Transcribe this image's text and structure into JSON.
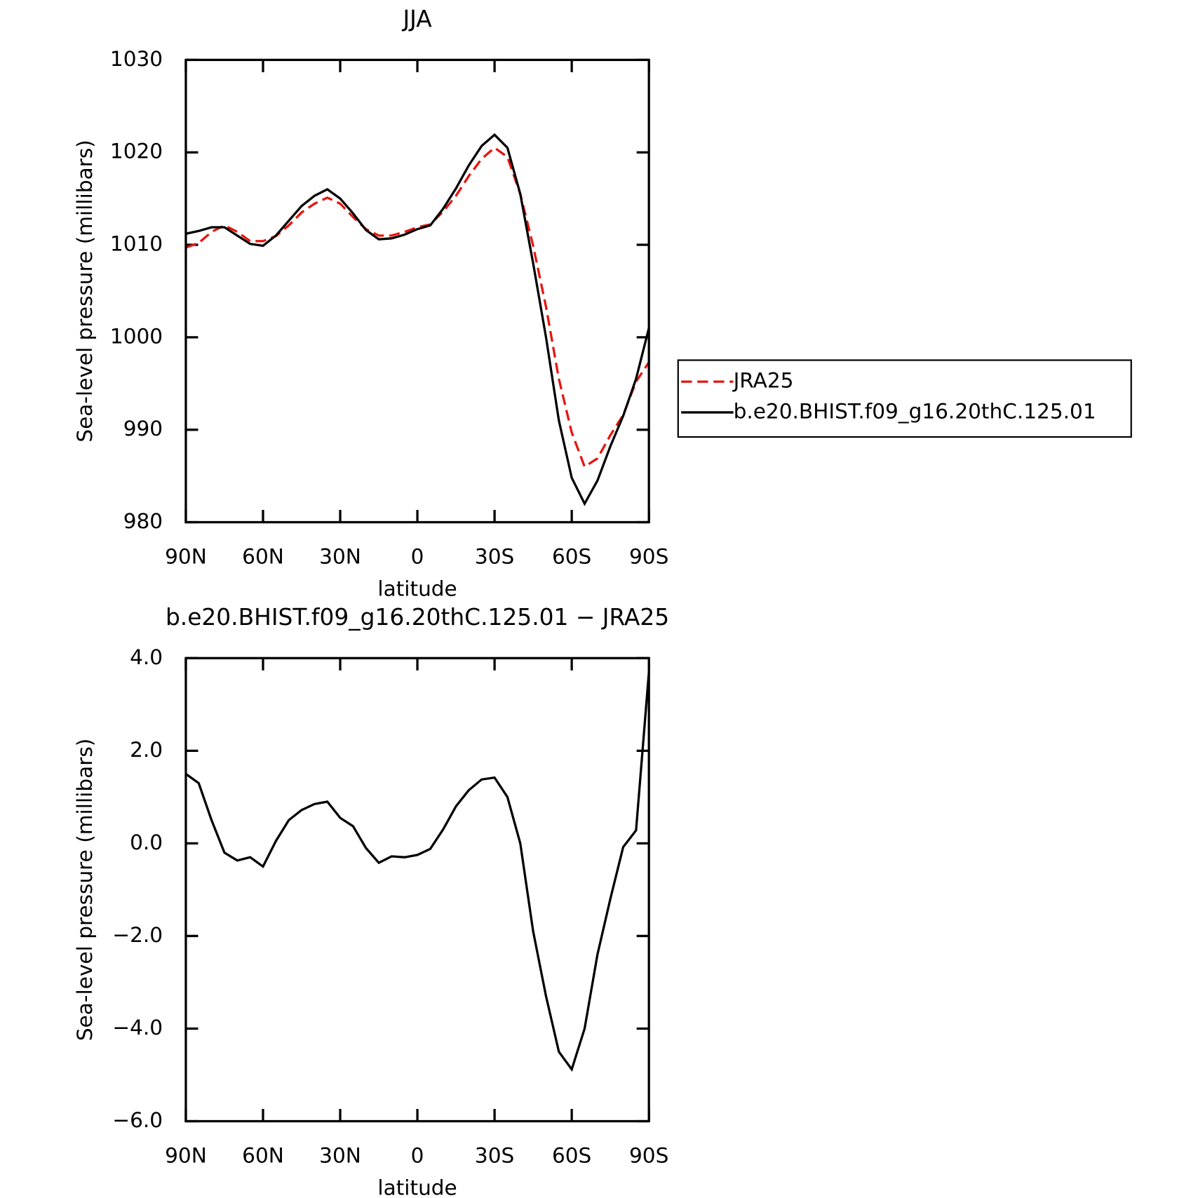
{
  "chart_data": [
    {
      "type": "line",
      "title": "JJA",
      "xlabel": "latitude",
      "ylabel": "Sea-level pressure (millibars)",
      "x": [
        90,
        85,
        80,
        75,
        70,
        65,
        60,
        55,
        50,
        45,
        40,
        35,
        30,
        25,
        20,
        15,
        10,
        5,
        0,
        -5,
        -10,
        -15,
        -20,
        -25,
        -30,
        -35,
        -40,
        -45,
        -50,
        -55,
        -60,
        -65,
        -70,
        -75,
        -80,
        -85,
        -90
      ],
      "series": [
        {
          "name": "JRA25",
          "color": "#e8140e",
          "linestyle": "dashed",
          "values": [
            1009.7,
            1010.2,
            1011.4,
            1012.1,
            1011.4,
            1010.4,
            1010.4,
            1010.95,
            1012.1,
            1013.5,
            1014.45,
            1015.1,
            1014.45,
            1013.0,
            1011.7,
            1011.0,
            1011.0,
            1011.4,
            1011.9,
            1012.2,
            1013.6,
            1015.3,
            1017.45,
            1019.3,
            1020.5,
            1019.5,
            1015.5,
            1009.9,
            1003.3,
            995.5,
            989.7,
            986.0,
            986.9,
            989.4,
            991.6,
            995.2,
            997.3
          ]
        },
        {
          "name": "b.e20.BHIST.f09_g16.20thC.125.01",
          "color": "#000000",
          "linestyle": "solid",
          "values": [
            1011.2,
            1011.5,
            1011.9,
            1011.9,
            1011.0,
            1010.1,
            1009.9,
            1011.0,
            1012.6,
            1014.2,
            1015.3,
            1016.0,
            1015.0,
            1013.4,
            1011.6,
            1010.6,
            1010.7,
            1011.1,
            1011.7,
            1012.1,
            1013.9,
            1016.1,
            1018.6,
            1020.7,
            1021.9,
            1020.5,
            1015.5,
            1008.0,
            1000.0,
            991.0,
            984.8,
            982.0,
            984.5,
            988.2,
            991.5,
            995.5,
            1001.0
          ]
        }
      ],
      "xlim": [
        90,
        -90
      ],
      "xticks": [
        {
          "value": 90,
          "label": "90N"
        },
        {
          "value": 60,
          "label": "60N"
        },
        {
          "value": 30,
          "label": "30N"
        },
        0,
        {
          "value": -30,
          "label": "30S"
        },
        {
          "value": -60,
          "label": "60S"
        },
        {
          "value": -90,
          "label": "90S"
        }
      ],
      "ylim": [
        980,
        1030
      ],
      "yticks": [
        980,
        990,
        1000,
        1010,
        1020,
        1030
      ],
      "legend": "right"
    },
    {
      "type": "line",
      "title": "b.e20.BHIST.f09_g16.20thC.125.01 − JRA25",
      "xlabel": "latitude",
      "ylabel": "Sea-level pressure (millibars)",
      "x": [
        90,
        85,
        80,
        75,
        70,
        65,
        60,
        55,
        50,
        45,
        40,
        35,
        30,
        25,
        20,
        15,
        10,
        5,
        0,
        -5,
        -10,
        -15,
        -20,
        -25,
        -30,
        -35,
        -40,
        -45,
        -50,
        -55,
        -60,
        -65,
        -70,
        -75,
        -80,
        -85,
        -90
      ],
      "series": [
        {
          "color": "#000000",
          "linestyle": "solid",
          "values": [
            1.5,
            1.3,
            0.5,
            -0.2,
            -0.37,
            -0.3,
            -0.5,
            0.05,
            0.5,
            0.72,
            0.85,
            0.9,
            0.55,
            0.37,
            -0.1,
            -0.42,
            -0.28,
            -0.3,
            -0.25,
            -0.12,
            0.3,
            0.8,
            1.15,
            1.38,
            1.42,
            1.0,
            0.0,
            -1.9,
            -3.3,
            -4.5,
            -4.88,
            -4.0,
            -2.4,
            -1.2,
            -0.08,
            0.28,
            3.7
          ]
        }
      ],
      "xlim": [
        90,
        -90
      ],
      "xticks": [
        {
          "value": 90,
          "label": "90N"
        },
        {
          "value": 60,
          "label": "60N"
        },
        {
          "value": 30,
          "label": "30N"
        },
        0,
        {
          "value": -30,
          "label": "30S"
        },
        {
          "value": -60,
          "label": "60S"
        },
        {
          "value": -90,
          "label": "90S"
        }
      ],
      "ylim": [
        -6,
        4
      ],
      "yticks": [
        {
          "value": -6,
          "label": "−6.0"
        },
        {
          "value": -4,
          "label": "−4.0"
        },
        {
          "value": -2,
          "label": "−2.0"
        },
        {
          "value": 0,
          "label": "0.0"
        },
        {
          "value": 2,
          "label": "2.0"
        },
        {
          "value": 4,
          "label": "4.0"
        }
      ]
    }
  ]
}
